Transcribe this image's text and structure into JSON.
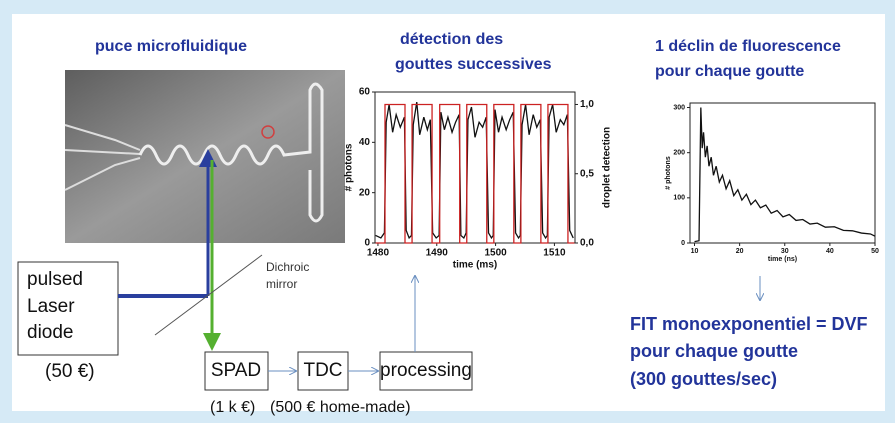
{
  "chip": {
    "title": "puce microfluidique"
  },
  "detection_plot": {
    "title": [
      "détection des",
      "gouttes successives"
    ],
    "xlabel": "time (ms)",
    "ylabel": "# photons",
    "y2label": "droplet detection",
    "xlim": [
      1479.5,
      1513.5
    ],
    "ylim": [
      0,
      60
    ],
    "y2lim": [
      0,
      1.09
    ],
    "xticks": [
      1480,
      1490,
      1500,
      1510
    ],
    "yticks": [
      0,
      20,
      40,
      60
    ],
    "y2ticks": [
      {
        "value": 0,
        "label": "0,0"
      },
      {
        "value": 0.5,
        "label": "0,5"
      },
      {
        "value": 1,
        "label": "1,0"
      }
    ],
    "photons": {
      "color": "#111111",
      "x": [
        1479.6,
        1480.5,
        1481.1,
        1481.4,
        1481.9,
        1482.5,
        1483.1,
        1483.8,
        1484.5,
        1484.8,
        1485.3,
        1485.7,
        1486.0,
        1486.6,
        1487.1,
        1487.8,
        1488.4,
        1488.9,
        1489.3,
        1489.9,
        1490.4,
        1490.7,
        1491.3,
        1491.9,
        1492.6,
        1493.2,
        1493.8,
        1494.1,
        1494.6,
        1495.0,
        1495.3,
        1495.9,
        1496.5,
        1497.2,
        1497.8,
        1498.4,
        1498.8,
        1499.3,
        1499.6,
        1499.9,
        1500.5,
        1501.1,
        1501.8,
        1502.4,
        1503.0,
        1503.4,
        1503.9,
        1504.2,
        1504.5,
        1505.1,
        1505.7,
        1506.4,
        1507.0,
        1507.6,
        1508.0,
        1508.5,
        1508.8,
        1509.1,
        1509.7,
        1510.3,
        1511.0,
        1511.6,
        1512.2,
        1512.6,
        1513.2
      ],
      "values": [
        3,
        2,
        4,
        48,
        55,
        44,
        51,
        46,
        50,
        5,
        2,
        3,
        47,
        56,
        43,
        50,
        45,
        49,
        4,
        2,
        3,
        52,
        45,
        50,
        44,
        48,
        51,
        3,
        2,
        4,
        49,
        54,
        42,
        48,
        46,
        50,
        4,
        2,
        3,
        53,
        44,
        50,
        45,
        49,
        52,
        4,
        2,
        3,
        47,
        55,
        43,
        51,
        46,
        49,
        4,
        2,
        3,
        50,
        55,
        44,
        49,
        47,
        51,
        5,
        2
      ]
    },
    "detection": {
      "color": "#cc2222",
      "x": [
        1479.6,
        1481.2,
        1481.2,
        1484.6,
        1484.6,
        1485.8,
        1485.8,
        1489.2,
        1489.2,
        1490.5,
        1490.5,
        1493.9,
        1493.9,
        1495.1,
        1495.1,
        1498.5,
        1498.5,
        1499.7,
        1499.7,
        1503.1,
        1503.1,
        1504.3,
        1504.3,
        1507.7,
        1507.7,
        1508.9,
        1508.9,
        1512.3,
        1512.3,
        1513.4
      ],
      "values": [
        0,
        0,
        1,
        1,
        0,
        0,
        1,
        1,
        0,
        0,
        1,
        1,
        0,
        0,
        1,
        1,
        0,
        0,
        1,
        1,
        0,
        0,
        1,
        1,
        0,
        0,
        1,
        1,
        0,
        0
      ]
    }
  },
  "decay_plot": {
    "title": [
      "1 déclin de fluorescence",
      "pour chaque goutte"
    ],
    "xlabel": "time (ns)",
    "ylabel": "# photons",
    "xlim": [
      9,
      50
    ],
    "ylim": [
      0,
      310
    ],
    "xticks": [
      10,
      20,
      30,
      40,
      50
    ],
    "yticks": [
      0,
      100,
      200,
      300
    ],
    "trace": {
      "color": "#111111",
      "x": [
        10,
        11,
        11.4,
        11.7,
        12,
        12.4,
        12.8,
        13.2,
        13.7,
        14.2,
        14.8,
        15.5,
        16.2,
        17,
        17.8,
        18.7,
        19.6,
        20.5,
        21.5,
        22.5,
        23.5,
        24.6,
        25.8,
        27,
        28.3,
        29.6,
        31,
        32.5,
        34,
        35.6,
        37.2,
        39,
        41,
        43,
        45,
        47,
        49,
        50
      ],
      "values": [
        3,
        5,
        300,
        210,
        245,
        190,
        215,
        170,
        190,
        150,
        170,
        135,
        150,
        120,
        138,
        105,
        118,
        95,
        108,
        85,
        95,
        78,
        84,
        66,
        72,
        58,
        63,
        50,
        52,
        42,
        44,
        35,
        36,
        28,
        27,
        22,
        20,
        15
      ]
    }
  },
  "fit": {
    "lines": [
      "FIT monoexponentiel = DVF",
      "pour chaque goutte",
      "(300 gouttes/sec)"
    ]
  },
  "laser": {
    "lines": [
      "pulsed",
      "Laser",
      "diode"
    ],
    "price": "(50 €)"
  },
  "mirror": {
    "lines": [
      "Dichroic",
      "mirror"
    ]
  },
  "spad": {
    "label": "SPAD",
    "price": "(1 k €)"
  },
  "tdc": {
    "label": "TDC",
    "price": "(500 € home-made)"
  },
  "processing": {
    "label": "processing"
  }
}
